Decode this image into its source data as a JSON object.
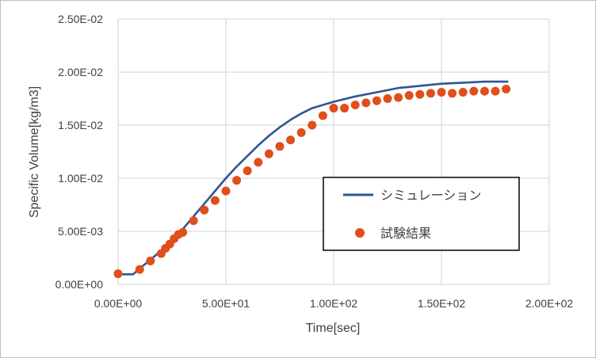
{
  "chart_data": {
    "type": "line",
    "xlabel": "Time[sec]",
    "ylabel": "Specific Volume[kg/m3]",
    "xlim": [
      0,
      200
    ],
    "ylim": [
      0,
      0.025
    ],
    "x_ticks": [
      {
        "value": 0,
        "label": "0.00E+00"
      },
      {
        "value": 50,
        "label": "5.00E+01"
      },
      {
        "value": 100,
        "label": "1.00E+02"
      },
      {
        "value": 150,
        "label": "1.50E+02"
      },
      {
        "value": 200,
        "label": "2.00E+02"
      }
    ],
    "y_ticks": [
      {
        "value": 0,
        "label": "0.00E+00"
      },
      {
        "value": 0.005,
        "label": "5.00E-03"
      },
      {
        "value": 0.01,
        "label": "1.00E-02"
      },
      {
        "value": 0.015,
        "label": "1.50E-02"
      },
      {
        "value": 0.02,
        "label": "2.00E-02"
      },
      {
        "value": 0.025,
        "label": "2.50E-02"
      }
    ],
    "grid": true,
    "legend": {
      "position": "right-center",
      "border": true
    },
    "series": [
      {
        "name": "シミュレーション",
        "kind": "line",
        "color": "#2f5597",
        "points": [
          [
            0,
            0.00095
          ],
          [
            7,
            0.00095
          ],
          [
            10,
            0.0015
          ],
          [
            15,
            0.0023
          ],
          [
            20,
            0.0032
          ],
          [
            25,
            0.0042
          ],
          [
            30,
            0.0052
          ],
          [
            35,
            0.0064
          ],
          [
            40,
            0.0076
          ],
          [
            45,
            0.0088
          ],
          [
            50,
            0.01
          ],
          [
            55,
            0.0111
          ],
          [
            60,
            0.0121
          ],
          [
            65,
            0.0131
          ],
          [
            70,
            0.014
          ],
          [
            75,
            0.0148
          ],
          [
            80,
            0.0155
          ],
          [
            85,
            0.0161
          ],
          [
            90,
            0.0166
          ],
          [
            95,
            0.0169
          ],
          [
            100,
            0.0172
          ],
          [
            110,
            0.0177
          ],
          [
            120,
            0.0181
          ],
          [
            130,
            0.0185
          ],
          [
            140,
            0.0187
          ],
          [
            150,
            0.0189
          ],
          [
            160,
            0.019
          ],
          [
            170,
            0.0191
          ],
          [
            181,
            0.0191
          ]
        ]
      },
      {
        "name": "試験結果",
        "kind": "scatter",
        "color": "#e04e1b",
        "points": [
          [
            0,
            0.001
          ],
          [
            10,
            0.0014
          ],
          [
            15,
            0.0022
          ],
          [
            20,
            0.0029
          ],
          [
            22,
            0.0034
          ],
          [
            24,
            0.0038
          ],
          [
            26,
            0.0043
          ],
          [
            28,
            0.0047
          ],
          [
            30,
            0.0049
          ],
          [
            35,
            0.006
          ],
          [
            40,
            0.007
          ],
          [
            45,
            0.0079
          ],
          [
            50,
            0.0088
          ],
          [
            55,
            0.0098
          ],
          [
            60,
            0.0107
          ],
          [
            65,
            0.0115
          ],
          [
            70,
            0.0123
          ],
          [
            75,
            0.013
          ],
          [
            80,
            0.0136
          ],
          [
            85,
            0.0143
          ],
          [
            90,
            0.015
          ],
          [
            95,
            0.0159
          ],
          [
            100,
            0.0166
          ],
          [
            105,
            0.0166
          ],
          [
            110,
            0.0169
          ],
          [
            115,
            0.0171
          ],
          [
            120,
            0.0173
          ],
          [
            125,
            0.0175
          ],
          [
            130,
            0.0176
          ],
          [
            135,
            0.0178
          ],
          [
            140,
            0.0179
          ],
          [
            145,
            0.018
          ],
          [
            150,
            0.0181
          ],
          [
            155,
            0.018
          ],
          [
            160,
            0.0181
          ],
          [
            165,
            0.0182
          ],
          [
            170,
            0.0182
          ],
          [
            175,
            0.0182
          ],
          [
            180,
            0.0184
          ]
        ]
      }
    ]
  }
}
